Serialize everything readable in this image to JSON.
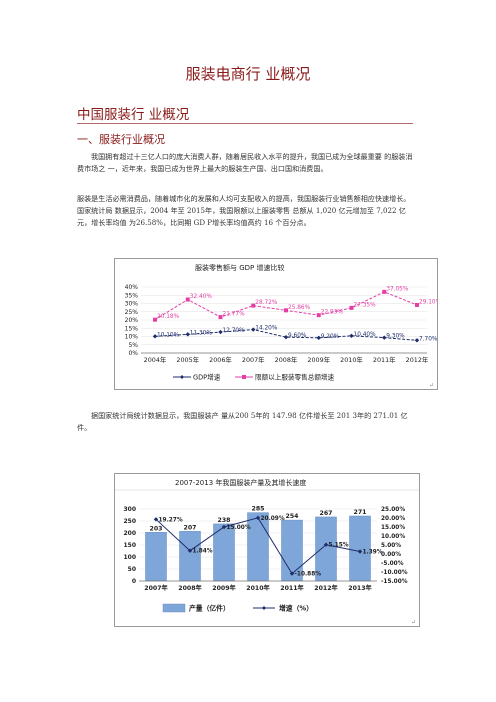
{
  "document": {
    "title": "服装电商行  业概况",
    "heading1": "中国服装行  业概况",
    "heading2": "一、服装行业概况",
    "paragraph1": "我国拥有超过十三亿人口的庞大消费人群，随着居民收入水平的提升，我国已成为全球最重要  的服装消费市场之  一，近年来，我国已成为世界上最大的服装生产国、出口国和消费国。",
    "paragraph2": "服装是生活必需消费品，随着城市化的发展和人均可支配收入的提高，我国服装行业销售额相应快速增长。国家统计局  数据显示，2004 年至 2015年，我国限额以上服装零售  总额从 1,020 亿元增加至 7,022 亿元，增长率均值  为26.58%，比同期 GD P增长率均值高约 16 个百分点。",
    "paragraph3": "据国家统计局统计数据显示，我国服装产  量从200 5年的 147.98 亿件增长至 201 3年的 271.01 亿件。",
    "return_mark": "↵"
  },
  "chart_data": [
    {
      "type": "line",
      "title": "服装零售额与 GDP 增速比较",
      "x": [
        "2004年",
        "2005年",
        "2006年",
        "2007年",
        "2008年",
        "2009年",
        "2010年",
        "2011年",
        "2012年"
      ],
      "ylim": [
        0,
        40
      ],
      "yticks": [
        "0%",
        "5%",
        "10%",
        "15%",
        "20%",
        "25%",
        "30%",
        "35%",
        "40%"
      ],
      "legend_position": "bottom",
      "series": [
        {
          "name": "GDP增速",
          "color": "#1f2d6b",
          "values": [
            10.1,
            11.3,
            12.7,
            14.2,
            9.6,
            9.2,
            10.4,
            9.3,
            7.7
          ],
          "labels": [
            "10.10%",
            "11.30%",
            "12.70%",
            "14.20%",
            "9.60%",
            "9.20%",
            "10.40%",
            "9.30%",
            "7.70%"
          ]
        },
        {
          "name": "限额以上服装零售总额增速",
          "color": "#e43ea6",
          "values": [
            20.18,
            32.4,
            21.77,
            28.72,
            25.86,
            22.93,
            27.35,
            37.05,
            29.1
          ],
          "labels": [
            "20.18%",
            "32.40%",
            "21.77%",
            "28.72%",
            "25.86%",
            "22.93%",
            "27.35%",
            "37.05%",
            "29.10%"
          ]
        }
      ]
    },
    {
      "type": "bar",
      "title": "2007-2013 年我国服装产量及其增长速度",
      "categories": [
        "2007年",
        "2008年",
        "2009年",
        "2010年",
        "2011年",
        "2012年",
        "2013年"
      ],
      "ylim": [
        0,
        300
      ],
      "yticks": [
        "0",
        "50",
        "100",
        "150",
        "200",
        "250",
        "300"
      ],
      "y2lim": [
        -15,
        25
      ],
      "y2ticks": [
        "25.00%",
        "20.00%",
        "15.00%",
        "10.00%",
        "5.00%",
        "0.00%",
        "-5.00%",
        "-10.00%",
        "-15.00%"
      ],
      "legend_position": "bottom",
      "series": [
        {
          "name": "产量（亿件）",
          "kind": "bar",
          "color": "#7fa6d8",
          "values": [
            203,
            207,
            238,
            285,
            254,
            267,
            271
          ],
          "labels": [
            "203",
            "207",
            "238",
            "285",
            "254",
            "267",
            "271"
          ]
        },
        {
          "name": "增速（%）",
          "kind": "line",
          "axis": "right",
          "color": "#1f2d6b",
          "values": [
            19.27,
            1.84,
            15.0,
            20.09,
            -10.88,
            5.15,
            1.39
          ],
          "labels": [
            "19.27%",
            "1.84%",
            "15.00%",
            "20.09%",
            "-10.88%",
            "5.15%",
            "1.39%"
          ]
        }
      ]
    }
  ]
}
